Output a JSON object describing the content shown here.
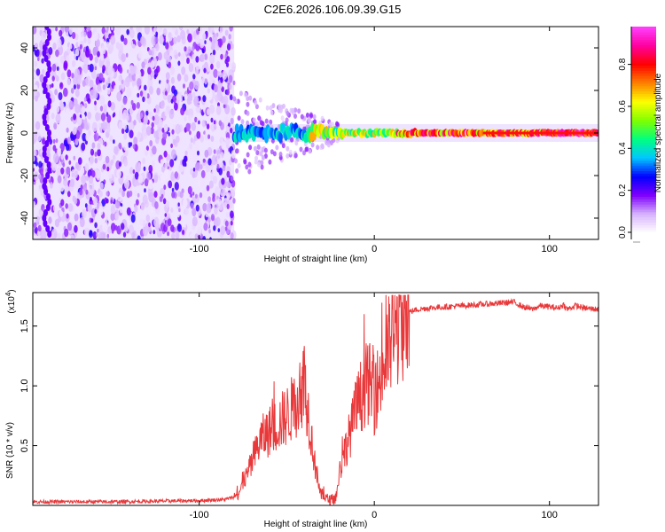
{
  "title": "C2E6.2026.106.09.39.G15",
  "chart_data": [
    {
      "type": "heatmap",
      "xlabel": "Height of straight line (km)",
      "ylabel": "Frequency (Hz)",
      "xlim": [
        -195,
        128
      ],
      "ylim": [
        -50,
        50
      ],
      "xticks": [
        -100,
        0,
        100
      ],
      "yticks": [
        -40,
        -20,
        0,
        20,
        40
      ],
      "noise_region_x": [
        -195,
        -80
      ],
      "signal_start_x": -80,
      "signal_freq_hz": 0,
      "colorbar": {
        "label": "Normalized spectral amplitude",
        "range": [
          0,
          1
        ],
        "ticks": [
          0.0,
          0.2,
          0.4,
          0.6,
          0.8
        ],
        "tick_labels": [
          "0.0",
          "0.2",
          "0.4",
          "0.6",
          "0.8"
        ],
        "colormap": [
          "#ffffff",
          "#d7b3ff",
          "#7f00ff",
          "#0000ff",
          "#00c8ff",
          "#00ff80",
          "#80ff00",
          "#ffff00",
          "#ff8000",
          "#ff0000",
          "#ff00a0",
          "#ff40ff"
        ]
      }
    },
    {
      "type": "line",
      "xlabel": "Height of straight line (km)",
      "ylabel": "SNR (10 * v/v)",
      "yscale_label": "(x10",
      "yscale_exp": "4",
      "xlim": [
        -195,
        128
      ],
      "ylim": [
        0.0,
        1.78
      ],
      "xticks": [
        -100,
        0,
        100
      ],
      "yticks": [
        0.5,
        1.0,
        1.5
      ],
      "ytick_labels": [
        "0.5",
        "1.0",
        "1.5"
      ],
      "color": "#e8383a",
      "x": [
        -195,
        -150,
        -100,
        -85,
        -78,
        -70,
        -65,
        -60,
        -55,
        -50,
        -45,
        -42,
        -40,
        -37,
        -34,
        -31,
        -28,
        -25,
        -22,
        -20,
        -18,
        -15,
        -12,
        -10,
        -8,
        -6,
        -4,
        -2,
        0,
        2,
        5,
        8,
        12,
        15,
        20,
        25,
        30,
        40,
        50,
        60,
        70,
        80,
        85,
        90,
        95,
        100,
        105,
        108,
        110,
        115,
        120,
        128
      ],
      "values": [
        0.03,
        0.03,
        0.04,
        0.05,
        0.08,
        0.35,
        0.55,
        0.62,
        0.68,
        0.75,
        0.85,
        0.95,
        1.05,
        0.7,
        0.35,
        0.1,
        0.06,
        0.04,
        0.06,
        0.25,
        0.4,
        0.55,
        0.7,
        0.82,
        0.9,
        0.98,
        1.03,
        1.0,
        0.9,
        1.0,
        1.15,
        1.3,
        1.45,
        1.55,
        1.62,
        1.64,
        1.65,
        1.66,
        1.67,
        1.68,
        1.69,
        1.7,
        1.66,
        1.64,
        1.67,
        1.66,
        1.65,
        1.68,
        1.64,
        1.67,
        1.65,
        1.64
      ]
    }
  ]
}
